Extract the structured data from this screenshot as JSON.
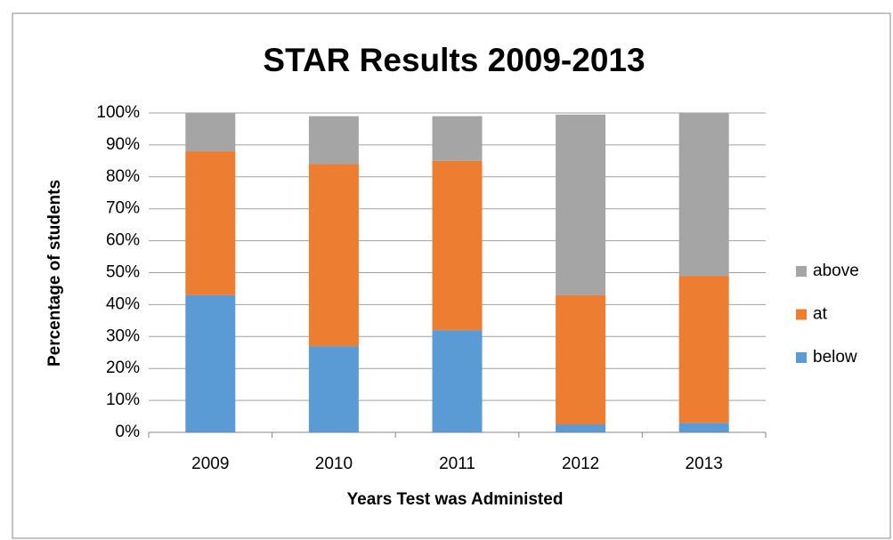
{
  "chart_data": {
    "type": "stacked_bar",
    "title": "STAR Results 2009-2013",
    "x_label": "Years Test was Administed",
    "y_label": "Percentage of students",
    "categories": [
      "2009",
      "2010",
      "2011",
      "2012",
      "2013"
    ],
    "series": [
      {
        "name": "below",
        "color": "#5b9bd5",
        "values": [
          43,
          27,
          32,
          2.5,
          3
        ]
      },
      {
        "name": "at",
        "color": "#ed7d31",
        "values": [
          45,
          57,
          53,
          40.5,
          46
        ]
      },
      {
        "name": "above",
        "color": "#a5a5a5",
        "values": [
          12,
          15,
          14,
          56.5,
          51
        ]
      }
    ],
    "ylim": [
      0,
      100
    ],
    "yticks": [
      {
        "value": 0,
        "label": "0%"
      },
      {
        "value": 10,
        "label": "10%"
      },
      {
        "value": 20,
        "label": "20%"
      },
      {
        "value": 30,
        "label": "30%"
      },
      {
        "value": 40,
        "label": "40%"
      },
      {
        "value": 50,
        "label": "50%"
      },
      {
        "value": 60,
        "label": "60%"
      },
      {
        "value": 70,
        "label": "70%"
      },
      {
        "value": 80,
        "label": "80%"
      },
      {
        "value": 90,
        "label": "90%"
      },
      {
        "value": 100,
        "label": "100%"
      }
    ],
    "grid": true,
    "legend": "right"
  }
}
